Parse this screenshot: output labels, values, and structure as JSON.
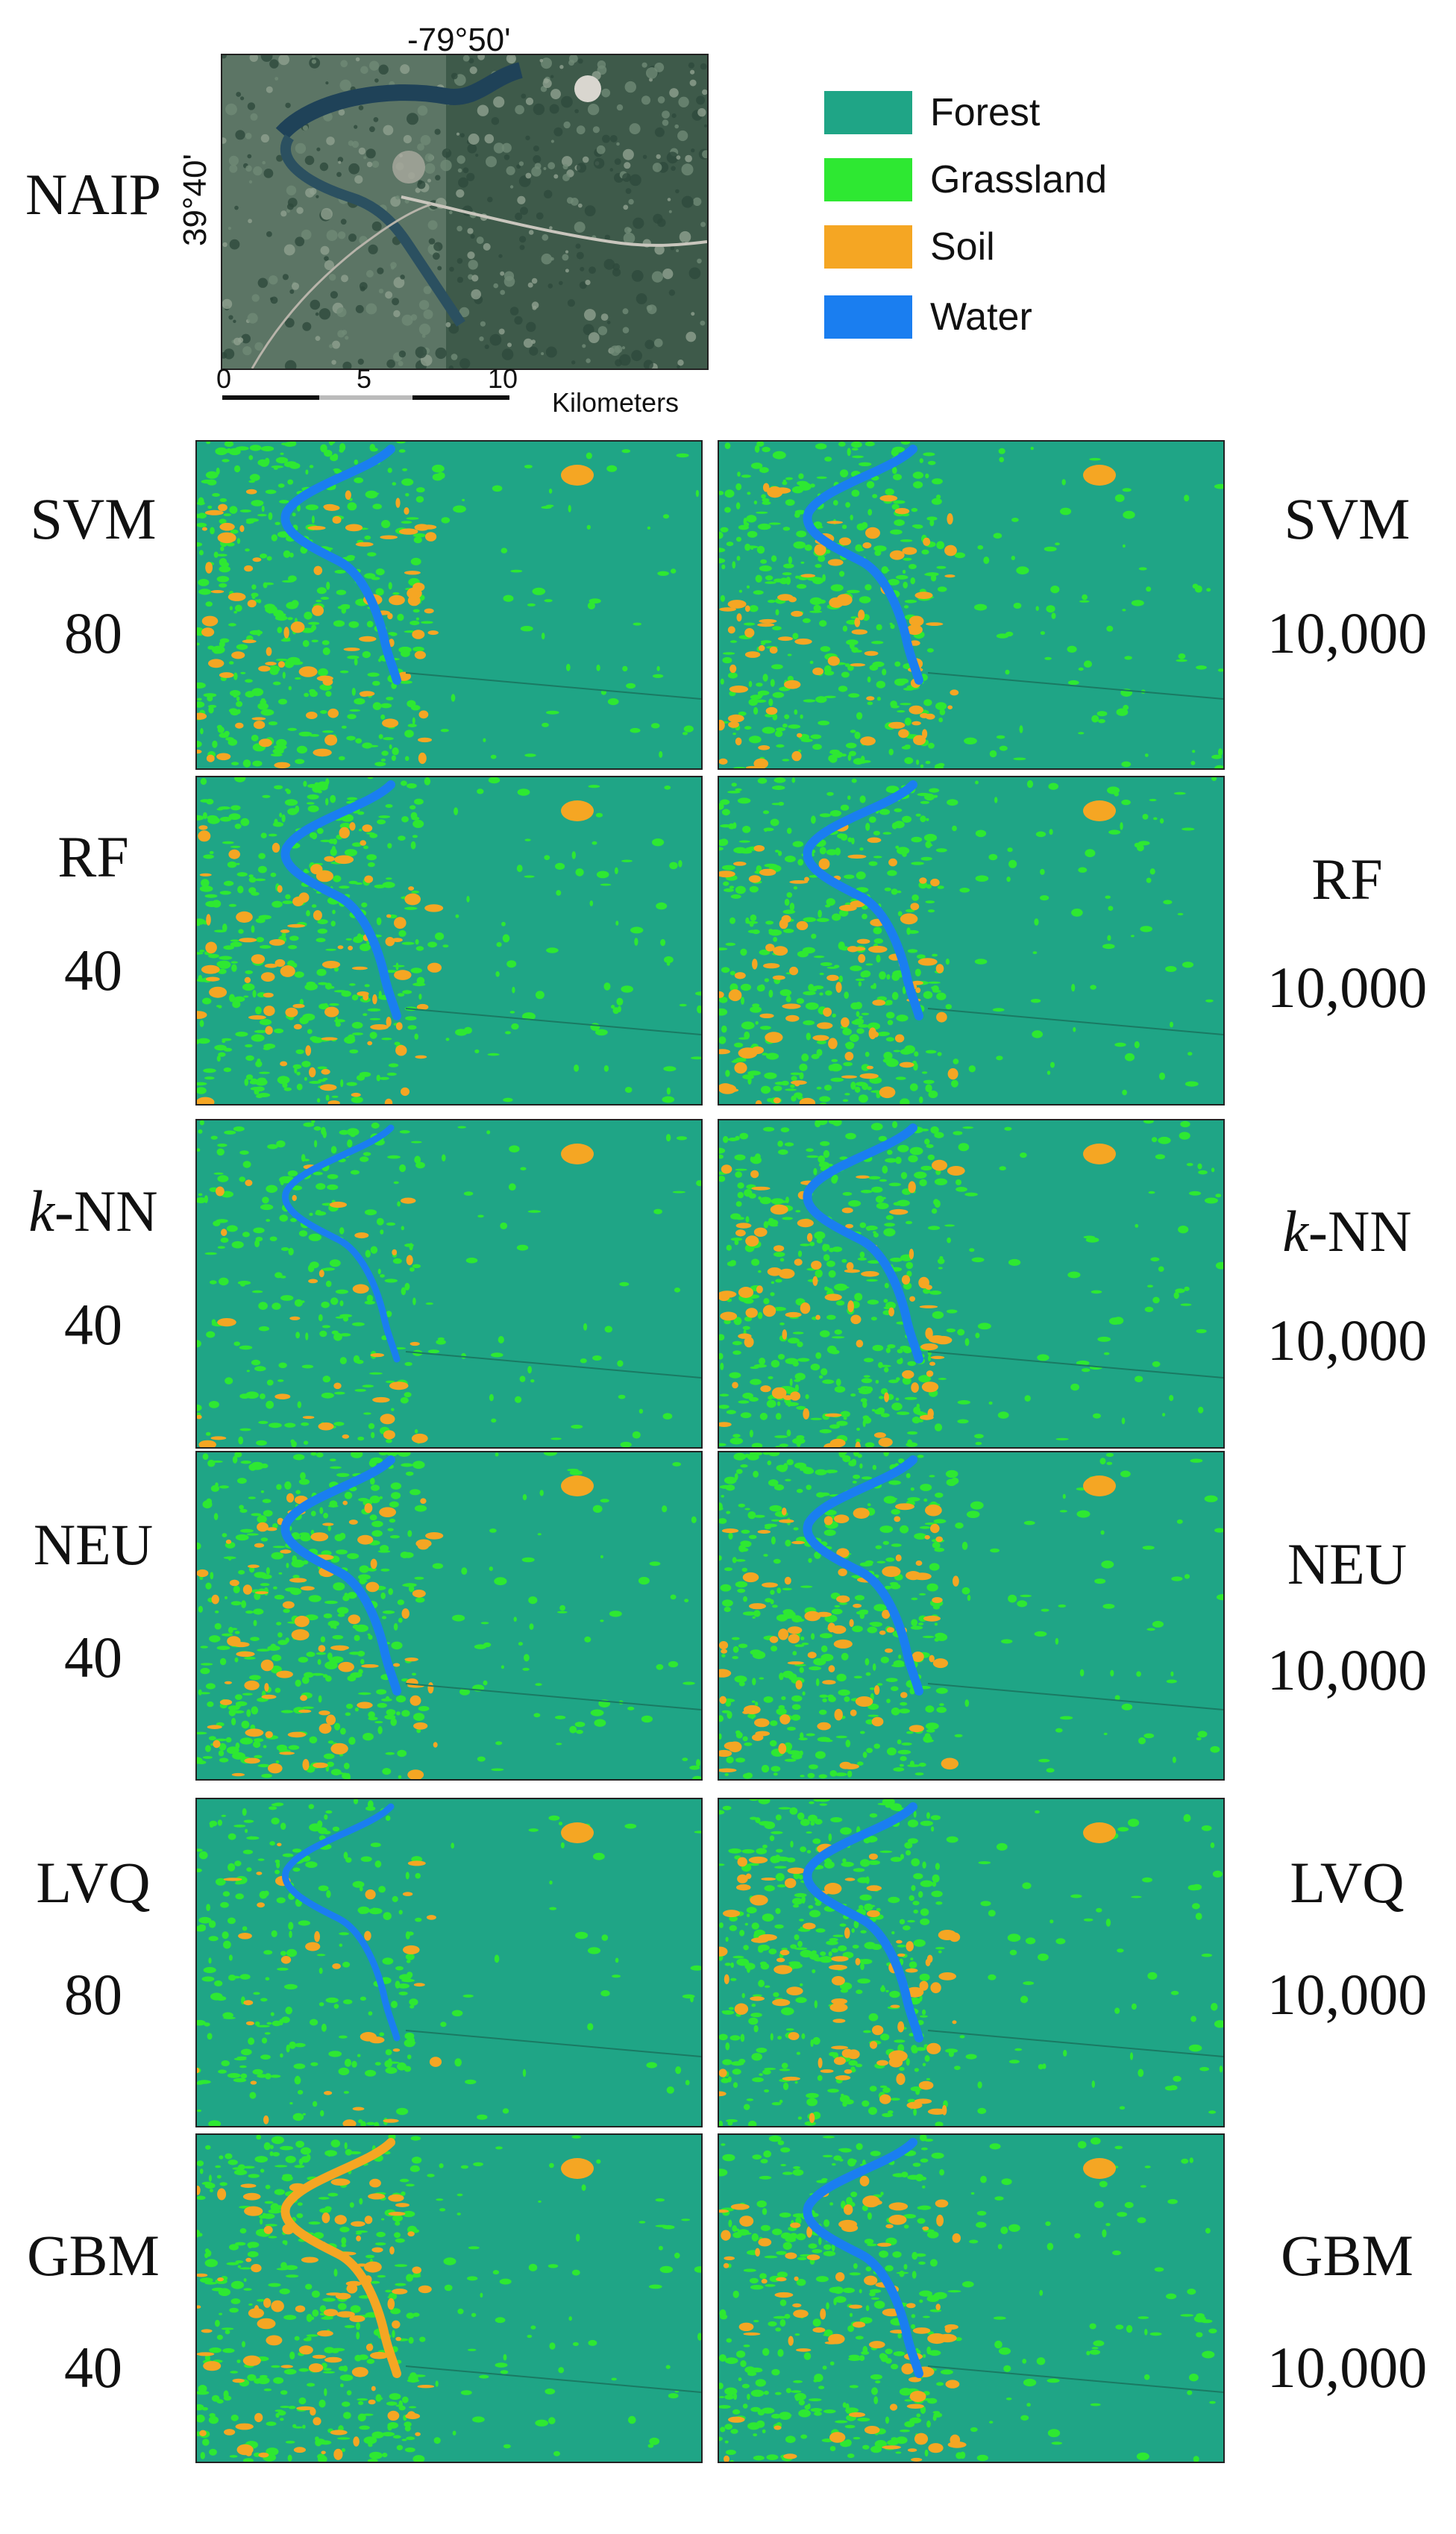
{
  "reference": {
    "label": "NAIP",
    "lon_label": "-79°50'",
    "lat_label": "39°40'",
    "scalebar": {
      "ticks": [
        "0",
        "5",
        "10"
      ],
      "unit": "Kilometers"
    }
  },
  "legend": [
    {
      "label": "Forest",
      "color": "#1fa586",
      "icon": "forest-swatch"
    },
    {
      "label": "Grassland",
      "color": "#2ee832",
      "icon": "grassland-swatch"
    },
    {
      "label": "Soil",
      "color": "#f5a623",
      "icon": "soil-swatch"
    },
    {
      "label": "Water",
      "color": "#1a7ef0",
      "icon": "water-swatch"
    }
  ],
  "rows": [
    {
      "method": "SVM",
      "left_size": "80",
      "right_size": "10,000"
    },
    {
      "method": "RF",
      "left_size": "40",
      "right_size": "10,000"
    },
    {
      "method": "NN",
      "prefix": "k",
      "left_size": "40",
      "right_size": "10,000"
    },
    {
      "method": "NEU",
      "left_size": "40",
      "right_size": "10,000"
    },
    {
      "method": "LVQ",
      "left_size": "80",
      "right_size": "10,000"
    },
    {
      "method": "GBM",
      "left_size": "40",
      "right_size": "10,000"
    }
  ]
}
